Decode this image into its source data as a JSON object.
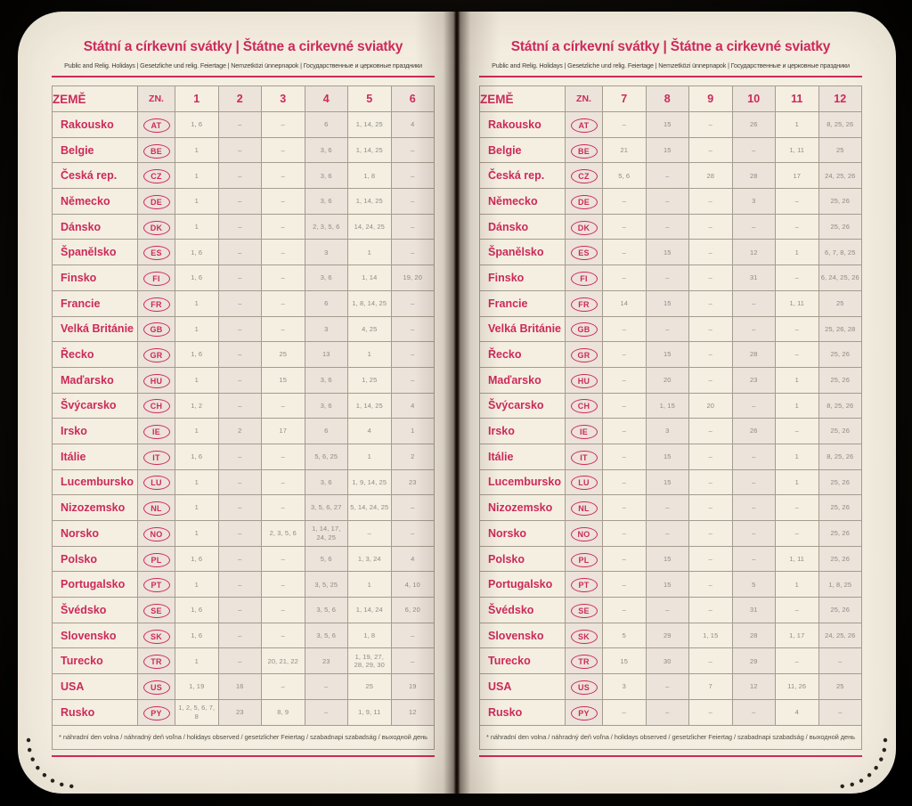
{
  "colors": {
    "accent": "#cc2a5a",
    "page_background": "#f5efe2",
    "tinted_cell": "#ece3db",
    "value_text": "#8f8b82"
  },
  "header": {
    "title": "Státní a církevní svátky | Štátne a cirkevné sviatky",
    "subtitle": "Public and Relig. Holidays | Gesetzliche und relig. Feiertage | Nemzetközi ünnepnapok | Государственные и церковные праздники"
  },
  "footnote": "* náhradní den volna / náhradný deň voľna / holidays observed / gesetzlicher Feiertag / szabadnapi szabadság / выходной день",
  "table": {
    "country_header": "ZEMĚ",
    "code_header": "ZN.",
    "left_months": [
      "1",
      "2",
      "3",
      "4",
      "5",
      "6"
    ],
    "right_months": [
      "7",
      "8",
      "9",
      "10",
      "11",
      "12"
    ],
    "rows": [
      {
        "country": "Rakousko",
        "code": "AT",
        "left": [
          "1, 6",
          "–",
          "–",
          "6",
          "1, 14, 25",
          "4"
        ],
        "right": [
          "–",
          "15",
          "–",
          "26",
          "1",
          "8, 25, 26"
        ]
      },
      {
        "country": "Belgie",
        "code": "BE",
        "left": [
          "1",
          "–",
          "–",
          "3, 6",
          "1, 14, 25",
          "–"
        ],
        "right": [
          "21",
          "15",
          "–",
          "–",
          "1, 11",
          "25"
        ]
      },
      {
        "country": "Česká rep.",
        "code": "CZ",
        "left": [
          "1",
          "–",
          "–",
          "3, 6",
          "1, 8",
          "–"
        ],
        "right": [
          "5, 6",
          "–",
          "28",
          "28",
          "17",
          "24, 25, 26"
        ]
      },
      {
        "country": "Německo",
        "code": "DE",
        "left": [
          "1",
          "–",
          "–",
          "3, 6",
          "1, 14, 25",
          "–"
        ],
        "right": [
          "–",
          "–",
          "–",
          "3",
          "–",
          "25, 26"
        ]
      },
      {
        "country": "Dánsko",
        "code": "DK",
        "left": [
          "1",
          "–",
          "–",
          "2, 3, 5, 6",
          "14, 24, 25",
          "–"
        ],
        "right": [
          "–",
          "–",
          "–",
          "–",
          "–",
          "25, 26"
        ]
      },
      {
        "country": "Španělsko",
        "code": "ES",
        "left": [
          "1, 6",
          "–",
          "–",
          "3",
          "1",
          "–"
        ],
        "right": [
          "–",
          "15",
          "–",
          "12",
          "1",
          "6, 7, 8, 25"
        ]
      },
      {
        "country": "Finsko",
        "code": "FI",
        "left": [
          "1, 6",
          "–",
          "–",
          "3, 6",
          "1, 14",
          "19, 20"
        ],
        "right": [
          "–",
          "–",
          "–",
          "31",
          "–",
          "6, 24, 25, 26"
        ]
      },
      {
        "country": "Francie",
        "code": "FR",
        "left": [
          "1",
          "–",
          "–",
          "6",
          "1, 8, 14, 25",
          "–"
        ],
        "right": [
          "14",
          "15",
          "–",
          "–",
          "1, 11",
          "25"
        ]
      },
      {
        "country": "Velká Británie",
        "code": "GB",
        "left": [
          "1",
          "–",
          "–",
          "3",
          "4, 25",
          "–"
        ],
        "right": [
          "–",
          "–",
          "–",
          "–",
          "–",
          "25, 26, 28"
        ]
      },
      {
        "country": "Řecko",
        "code": "GR",
        "left": [
          "1, 6",
          "–",
          "25",
          "13",
          "1",
          "–"
        ],
        "right": [
          "–",
          "15",
          "–",
          "28",
          "–",
          "25, 26"
        ]
      },
      {
        "country": "Maďarsko",
        "code": "HU",
        "left": [
          "1",
          "–",
          "15",
          "3, 6",
          "1, 25",
          "–"
        ],
        "right": [
          "–",
          "20",
          "–",
          "23",
          "1",
          "25, 26"
        ]
      },
      {
        "country": "Švýcarsko",
        "code": "CH",
        "left": [
          "1, 2",
          "–",
          "–",
          "3, 6",
          "1, 14, 25",
          "4"
        ],
        "right": [
          "–",
          "1, 15",
          "20",
          "–",
          "1",
          "8, 25, 26"
        ]
      },
      {
        "country": "Irsko",
        "code": "IE",
        "left": [
          "1",
          "2",
          "17",
          "6",
          "4",
          "1"
        ],
        "right": [
          "–",
          "3",
          "–",
          "26",
          "–",
          "25, 26"
        ]
      },
      {
        "country": "Itálie",
        "code": "IT",
        "left": [
          "1, 6",
          "–",
          "–",
          "5, 6, 25",
          "1",
          "2"
        ],
        "right": [
          "–",
          "15",
          "–",
          "–",
          "1",
          "8, 25, 26"
        ]
      },
      {
        "country": "Lucembursko",
        "code": "LU",
        "left": [
          "1",
          "–",
          "–",
          "3, 6",
          "1, 9, 14, 25",
          "23"
        ],
        "right": [
          "–",
          "15",
          "–",
          "–",
          "1",
          "25, 26"
        ]
      },
      {
        "country": "Nizozemsko",
        "code": "NL",
        "left": [
          "1",
          "–",
          "–",
          "3, 5, 6, 27",
          "5, 14, 24, 25",
          "–"
        ],
        "right": [
          "–",
          "–",
          "–",
          "–",
          "–",
          "25, 26"
        ]
      },
      {
        "country": "Norsko",
        "code": "NO",
        "left": [
          "1",
          "–",
          "2, 3, 5, 6",
          "1, 14, 17, 24, 25",
          "–",
          "–"
        ],
        "right": [
          "–",
          "–",
          "–",
          "–",
          "–",
          "25, 26"
        ]
      },
      {
        "country": "Polsko",
        "code": "PL",
        "left": [
          "1, 6",
          "–",
          "–",
          "5, 6",
          "1, 3, 24",
          "4"
        ],
        "right": [
          "–",
          "15",
          "–",
          "–",
          "1, 11",
          "25, 26"
        ]
      },
      {
        "country": "Portugalsko",
        "code": "PT",
        "left": [
          "1",
          "–",
          "–",
          "3, 5, 25",
          "1",
          "4, 10"
        ],
        "right": [
          "–",
          "15",
          "–",
          "5",
          "1",
          "1, 8, 25"
        ]
      },
      {
        "country": "Švédsko",
        "code": "SE",
        "left": [
          "1, 6",
          "–",
          "–",
          "3, 5, 6",
          "1, 14, 24",
          "6, 20"
        ],
        "right": [
          "–",
          "–",
          "–",
          "31",
          "–",
          "25, 26"
        ]
      },
      {
        "country": "Slovensko",
        "code": "SK",
        "left": [
          "1, 6",
          "–",
          "–",
          "3, 5, 6",
          "1, 8",
          "–"
        ],
        "right": [
          "5",
          "29",
          "1, 15",
          "28",
          "1, 17",
          "24, 25, 26"
        ]
      },
      {
        "country": "Turecko",
        "code": "TR",
        "left": [
          "1",
          "–",
          "20, 21, 22",
          "23",
          "1, 19, 27, 28, 29, 30",
          "–"
        ],
        "right": [
          "15",
          "30",
          "–",
          "29",
          "–",
          "–"
        ]
      },
      {
        "country": "USA",
        "code": "US",
        "left": [
          "1, 19",
          "16",
          "–",
          "–",
          "25",
          "19"
        ],
        "right": [
          "3",
          "–",
          "7",
          "12",
          "11, 26",
          "25"
        ]
      },
      {
        "country": "Rusko",
        "code": "PY",
        "left": [
          "1, 2, 5, 6, 7, 8",
          "23",
          "8, 9",
          "–",
          "1, 9, 11",
          "12"
        ],
        "right": [
          "–",
          "–",
          "–",
          "–",
          "4",
          "–"
        ]
      }
    ]
  }
}
